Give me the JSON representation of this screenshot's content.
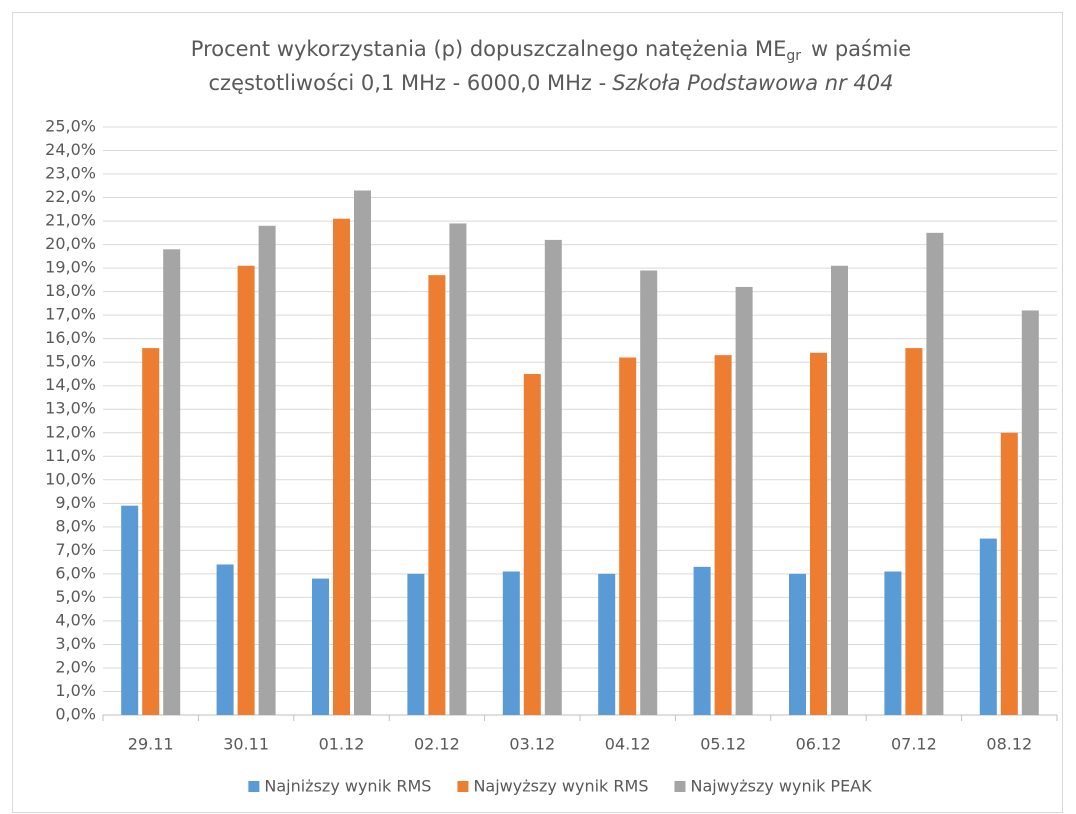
{
  "chart_data": {
    "type": "bar",
    "title": {
      "line1": "Procent wykorzystania (p) dopuszczalnego natężenia ME",
      "subscript": "gr",
      "line1_end": "w paśmie",
      "line2": "częstotliwości 0,1 MHz - 6000,0 MHz -",
      "line2_italic": "Szkoła Podstawowa nr 404"
    },
    "categories": [
      "29.11",
      "30.11",
      "01.12",
      "02.12",
      "03.12",
      "04.12",
      "05.12",
      "06.12",
      "07.12",
      "08.12"
    ],
    "series": [
      {
        "name": "Najniższy wynik RMS",
        "color": "#5b9bd5",
        "values": [
          8.9,
          6.4,
          5.8,
          6.0,
          6.1,
          6.0,
          6.3,
          6.0,
          6.1,
          7.5
        ]
      },
      {
        "name": "Najwyższy wynik RMS",
        "color": "#ed7d31",
        "values": [
          15.6,
          19.1,
          21.1,
          18.7,
          14.5,
          15.2,
          15.3,
          15.4,
          15.6,
          12.0
        ]
      },
      {
        "name": "Najwyższy wynik PEAK",
        "color": "#a5a5a5",
        "values": [
          19.8,
          20.8,
          22.3,
          20.9,
          20.2,
          18.9,
          18.2,
          19.1,
          20.5,
          17.2
        ]
      }
    ],
    "ylim": [
      0,
      25
    ],
    "yticks": [
      {
        "value": 0,
        "label": "0,0%"
      },
      {
        "value": 1,
        "label": "1,0%"
      },
      {
        "value": 2,
        "label": "2,0%"
      },
      {
        "value": 3,
        "label": "3,0%"
      },
      {
        "value": 4,
        "label": "4,0%"
      },
      {
        "value": 5,
        "label": "5,0%"
      },
      {
        "value": 6,
        "label": "6,0%"
      },
      {
        "value": 7,
        "label": "7,0%"
      },
      {
        "value": 8,
        "label": "8,0%"
      },
      {
        "value": 9,
        "label": "9,0%"
      },
      {
        "value": 10,
        "label": "10,0%"
      },
      {
        "value": 11,
        "label": "11,0%"
      },
      {
        "value": 12,
        "label": "12,0%"
      },
      {
        "value": 13,
        "label": "13,0%"
      },
      {
        "value": 14,
        "label": "14,0%"
      },
      {
        "value": 15,
        "label": "15,0%"
      },
      {
        "value": 16,
        "label": "16,0%"
      },
      {
        "value": 17,
        "label": "17,0%"
      },
      {
        "value": 18,
        "label": "18,0%"
      },
      {
        "value": 19,
        "label": "19,0%"
      },
      {
        "value": 20,
        "label": "20,0%"
      },
      {
        "value": 21,
        "label": "21,0%"
      },
      {
        "value": 22,
        "label": "22,0%"
      },
      {
        "value": 23,
        "label": "23,0%"
      },
      {
        "value": 24,
        "label": "24,0%"
      },
      {
        "value": 25,
        "label": "25,0%"
      }
    ],
    "grid": true,
    "legend": "bottom"
  }
}
